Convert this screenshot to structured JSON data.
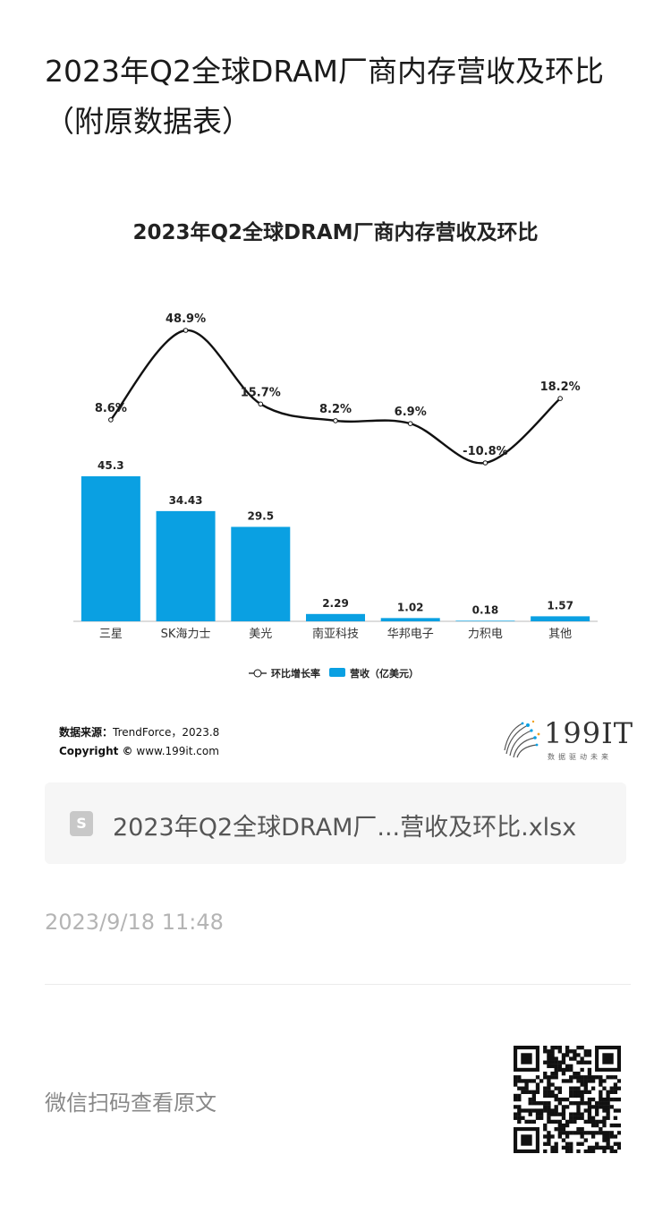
{
  "article": {
    "title": "2023年Q2全球DRAM厂商内存营收及环比（附原数据表）",
    "timestamp": "2023/9/18 11:48",
    "qr_label": "微信扫码查看原文"
  },
  "file": {
    "icon_letter": "S",
    "name": "2023年Q2全球DRAM厂...营收及环比.xlsx"
  },
  "source": {
    "label": "数据来源：",
    "value": "TrendForce，2023.8",
    "copyright_label": "Copyright ©",
    "copyright_value": "www.199it.com"
  },
  "logo": {
    "text": "199IT",
    "sub": "数据驱动未来"
  },
  "colors": {
    "bar": "#0aa0e2",
    "line": "#111111"
  },
  "chart_data": {
    "type": "bar",
    "title": "2023年Q2全球DRAM厂商内存营收及环比",
    "categories": [
      "三星",
      "SK海力士",
      "美光",
      "南亚科技",
      "华邦电子",
      "力积电",
      "其他"
    ],
    "series": [
      {
        "name": "营收（亿美元）",
        "type": "bar",
        "values": [
          45.3,
          34.43,
          29.5,
          2.29,
          1.02,
          0.18,
          1.57
        ],
        "labels": [
          "45.3",
          "34.43",
          "29.5",
          "2.29",
          "1.02",
          "0.18",
          "1.57"
        ]
      },
      {
        "name": "环比增长率",
        "type": "line",
        "values": [
          8.6,
          48.9,
          15.7,
          8.2,
          6.9,
          -10.8,
          18.2
        ],
        "labels": [
          "8.6%",
          "48.9%",
          "15.7%",
          "8.2%",
          "6.9%",
          "-10.8%",
          "18.2%"
        ]
      }
    ],
    "legend_position": "bottom",
    "grid": false
  }
}
